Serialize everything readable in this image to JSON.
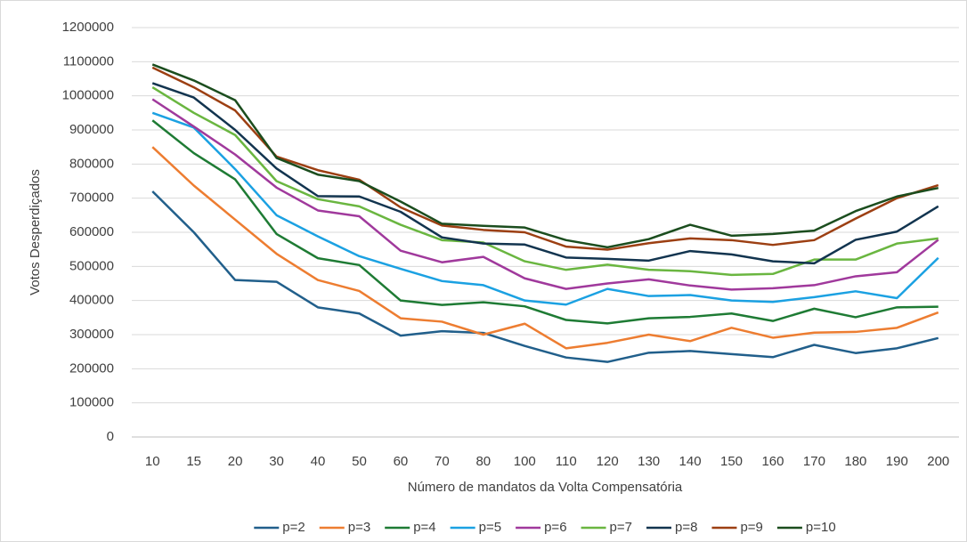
{
  "chart_data": {
    "type": "line",
    "y_label": "Votos Desperdiçados",
    "x_label": "Número de mandatos da Volta Compensatória",
    "categories": [
      "10",
      "15",
      "20",
      "30",
      "40",
      "50",
      "60",
      "70",
      "80",
      "100",
      "110",
      "120",
      "130",
      "140",
      "150",
      "160",
      "170",
      "180",
      "190",
      "200"
    ],
    "ylim": [
      0,
      1200000
    ],
    "yticks": [
      0,
      100000,
      200000,
      300000,
      400000,
      500000,
      600000,
      700000,
      800000,
      900000,
      1000000,
      1100000,
      1200000
    ],
    "grid": true,
    "legend": "bottom",
    "series": [
      {
        "name": "p=2",
        "color": "#215f8b",
        "values": [
          720000,
          600000,
          460000,
          455000,
          380000,
          362000,
          297000,
          310000,
          305000,
          267000,
          233000,
          220000,
          247000,
          252000,
          243000,
          234000,
          270000,
          246000,
          260000,
          290000
        ]
      },
      {
        "name": "p=3",
        "color": "#ed7d31",
        "values": [
          850000,
          737000,
          637000,
          537000,
          460000,
          428000,
          348000,
          338000,
          300000,
          332000,
          260000,
          276000,
          300000,
          281000,
          320000,
          291000,
          306000,
          308000,
          320000,
          365000
        ]
      },
      {
        "name": "p=4",
        "color": "#1e7b34",
        "values": [
          928000,
          832000,
          755000,
          595000,
          524000,
          504000,
          400000,
          387000,
          395000,
          383000,
          343000,
          333000,
          348000,
          352000,
          362000,
          340000,
          376000,
          351000,
          380000,
          382000
        ]
      },
      {
        "name": "p=5",
        "color": "#1ba1e2",
        "values": [
          950000,
          907000,
          785000,
          650000,
          588000,
          530000,
          493000,
          457000,
          445000,
          400000,
          388000,
          434000,
          413000,
          416000,
          400000,
          396000,
          410000,
          427000,
          407000,
          525000
        ]
      },
      {
        "name": "p=6",
        "color": "#a0399c",
        "values": [
          990000,
          910000,
          828000,
          731000,
          664000,
          647000,
          546000,
          512000,
          528000,
          465000,
          434000,
          450000,
          462000,
          444000,
          432000,
          436000,
          445000,
          471000,
          483000,
          578000
        ]
      },
      {
        "name": "p=7",
        "color": "#6ab640",
        "values": [
          1025000,
          950000,
          885000,
          750000,
          697000,
          676000,
          622000,
          577000,
          570000,
          515000,
          490000,
          505000,
          490000,
          486000,
          475000,
          478000,
          520000,
          520000,
          567000,
          582000
        ]
      },
      {
        "name": "p=8",
        "color": "#12344f",
        "values": [
          1037000,
          995000,
          900000,
          787000,
          706000,
          705000,
          660000,
          585000,
          567000,
          564000,
          526000,
          522000,
          517000,
          545000,
          535000,
          515000,
          509000,
          578000,
          602000,
          676000
        ]
      },
      {
        "name": "p=9",
        "color": "#9c3f12",
        "values": [
          1083000,
          1025000,
          957000,
          822000,
          782000,
          754000,
          673000,
          620000,
          607000,
          600000,
          558000,
          549000,
          568000,
          582000,
          577000,
          563000,
          577000,
          640000,
          700000,
          738000
        ]
      },
      {
        "name": "p=10",
        "color": "#1b4d1e",
        "values": [
          1092000,
          1045000,
          987000,
          818000,
          769000,
          750000,
          690000,
          625000,
          619000,
          614000,
          577000,
          556000,
          580000,
          622000,
          590000,
          595000,
          605000,
          662000,
          705000,
          730000
        ]
      }
    ]
  }
}
